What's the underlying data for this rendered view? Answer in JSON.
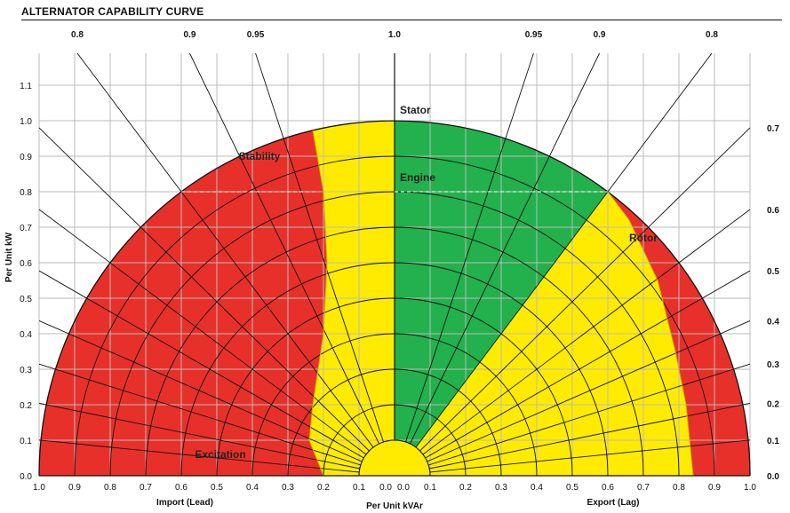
{
  "title": "ALTERNATOR CAPABILITY CURVE",
  "colors": {
    "unstable": "#e8302a",
    "limited": "#ffeb00",
    "normal": "#22b14c",
    "grid": "#bbbbbb",
    "lines": "#111111",
    "engine_dash": "#ffffff"
  },
  "chart_data": {
    "type": "area",
    "title": "ALTERNATOR CAPABILITY CURVE",
    "xlabel": "Per Unit kVAr",
    "xlabel_left": "Import (Lead)",
    "xlabel_right": "Export (Lag)",
    "ylabel": "Per Unit kW",
    "xlim": [
      -1.0,
      1.0
    ],
    "ylim": [
      0.0,
      1.0
    ],
    "x_tick_labels": [
      "1.0",
      "0.9",
      "0.8",
      "0.7",
      "0.6",
      "0.5",
      "0.4",
      "0.3",
      "0.2",
      "0.1",
      "0.0",
      "0.0",
      "0.1",
      "0.2",
      "0.3",
      "0.4",
      "0.5",
      "0.6",
      "0.7",
      "0.8",
      "0.9",
      "1.0"
    ],
    "y_tick_labels": [
      "0.0",
      "0.1",
      "0.2",
      "0.3",
      "0.4",
      "0.5",
      "0.6",
      "0.7",
      "0.8",
      "0.9",
      "1.0",
      "1.1"
    ],
    "power_factor_top": [
      {
        "label": "0.8",
        "pf": 0.8,
        "side": "lead"
      },
      {
        "label": "0.9",
        "pf": 0.9,
        "side": "lead"
      },
      {
        "label": "0.95",
        "pf": 0.95,
        "side": "lead"
      },
      {
        "label": "1.0",
        "pf": 1.0,
        "side": "center"
      },
      {
        "label": "0.95",
        "pf": 0.95,
        "side": "lag"
      },
      {
        "label": "0.9",
        "pf": 0.9,
        "side": "lag"
      },
      {
        "label": "0.8",
        "pf": 0.8,
        "side": "lag"
      }
    ],
    "power_factor_right": [
      {
        "label": "0.7",
        "pf": 0.7
      },
      {
        "label": "0.6",
        "pf": 0.6
      },
      {
        "label": "0.5",
        "pf": 0.5
      },
      {
        "label": "0.4",
        "pf": 0.4
      },
      {
        "label": "0.3",
        "pf": 0.3
      },
      {
        "label": "0.2",
        "pf": 0.2
      },
      {
        "label": "0.1",
        "pf": 0.1
      },
      {
        "label": "0.0",
        "pf": 0.0
      }
    ],
    "radial_circles": [
      0.1,
      0.2,
      0.3,
      0.4,
      0.5,
      0.6,
      0.7,
      0.8,
      0.9,
      1.0
    ],
    "engine_limit_kw": 0.8,
    "stability_limit": [
      {
        "x": -0.2,
        "y": 0.0
      },
      {
        "x": -0.24,
        "y": 0.1
      },
      {
        "x": -0.23,
        "y": 0.2
      },
      {
        "x": -0.2,
        "y": 0.4
      },
      {
        "x": -0.19,
        "y": 0.6
      },
      {
        "x": -0.2,
        "y": 0.8
      },
      {
        "x": -0.23,
        "y": 0.973
      }
    ],
    "rotor_limit": [
      {
        "x": 0.84,
        "y": 0.0
      },
      {
        "x": 0.82,
        "y": 0.2
      },
      {
        "x": 0.79,
        "y": 0.35
      },
      {
        "x": 0.74,
        "y": 0.55
      },
      {
        "x": 0.66,
        "y": 0.72
      },
      {
        "x": 0.6,
        "y": 0.8
      }
    ],
    "excitation_limit_radius": 0.1,
    "annotations": [
      {
        "text": "Stator",
        "x": 0.0,
        "y": 1.02
      },
      {
        "text": "Engine",
        "x": 0.0,
        "y": 0.83
      },
      {
        "text": "Stability",
        "x": -0.38,
        "y": 0.89
      },
      {
        "text": "Rotor",
        "x": 0.7,
        "y": 0.66
      },
      {
        "text": "Excitation",
        "x": -0.49,
        "y": 0.05
      }
    ],
    "grid": true,
    "legend": "none"
  }
}
